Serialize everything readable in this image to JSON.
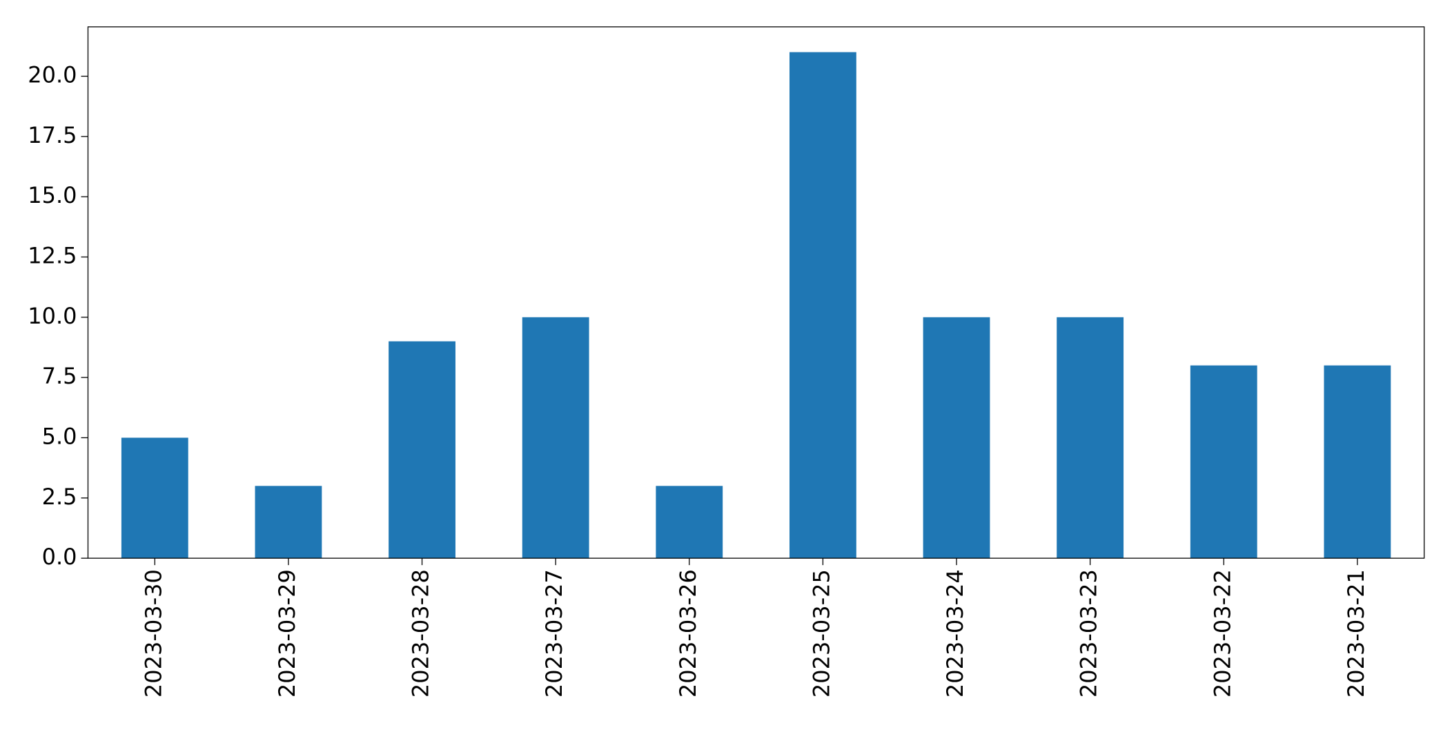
{
  "chart_data": {
    "type": "bar",
    "categories": [
      "2023-03-30",
      "2023-03-29",
      "2023-03-28",
      "2023-03-27",
      "2023-03-26",
      "2023-03-25",
      "2023-03-24",
      "2023-03-23",
      "2023-03-22",
      "2023-03-21"
    ],
    "values": [
      5,
      3,
      9,
      10,
      3,
      21,
      10,
      10,
      8,
      8
    ],
    "color": "#1f77b4",
    "ylim": [
      0,
      22.05
    ],
    "yticks": [
      {
        "value": 0,
        "label": "0.0"
      },
      2.5,
      {
        "value": 5,
        "label": "5.0"
      },
      7.5,
      {
        "value": 10,
        "label": "10.0"
      },
      12.5,
      {
        "value": 15,
        "label": "15.0"
      },
      17.5,
      {
        "value": 20,
        "label": "20.0"
      }
    ],
    "grid": false
  }
}
